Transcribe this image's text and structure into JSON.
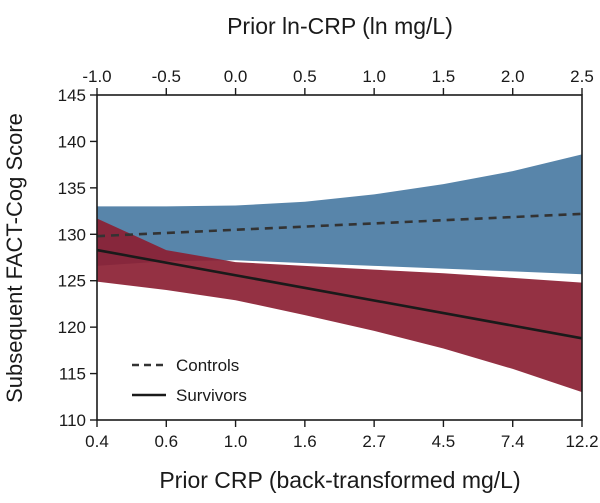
{
  "chart_data": {
    "type": "line",
    "title_top_axis": "Prior ln-CRP (ln mg/L)",
    "xlabel": "Prior CRP (back-transformed mg/L)",
    "ylabel": "Subsequent FACT-Cog Score",
    "xlim": [
      -1.0,
      2.5
    ],
    "ylim": [
      110,
      145
    ],
    "top_ticks": [
      {
        "value": -1.0,
        "label": "-1.0"
      },
      {
        "value": -0.5,
        "label": "-0.5"
      },
      {
        "value": 0.0,
        "label": "0.0"
      },
      {
        "value": 0.5,
        "label": "0.5"
      },
      {
        "value": 1.0,
        "label": "1.0"
      },
      {
        "value": 1.5,
        "label": "1.5"
      },
      {
        "value": 2.0,
        "label": "2.0"
      },
      {
        "value": 2.5,
        "label": "2.5"
      }
    ],
    "bottom_ticks": [
      {
        "value": -1.0,
        "label": "0.4"
      },
      {
        "value": -0.5,
        "label": "0.6"
      },
      {
        "value": 0.0,
        "label": "1.0"
      },
      {
        "value": 0.5,
        "label": "1.6"
      },
      {
        "value": 1.0,
        "label": "2.7"
      },
      {
        "value": 1.5,
        "label": "4.5"
      },
      {
        "value": 2.0,
        "label": "7.4"
      },
      {
        "value": 2.5,
        "label": "12.2"
      }
    ],
    "y_ticks": [
      {
        "value": 110,
        "label": "110"
      },
      {
        "value": 115,
        "label": "115"
      },
      {
        "value": 120,
        "label": "120"
      },
      {
        "value": 125,
        "label": "125"
      },
      {
        "value": 130,
        "label": "130"
      },
      {
        "value": 135,
        "label": "135"
      },
      {
        "value": 140,
        "label": "140"
      },
      {
        "value": 145,
        "label": "145"
      }
    ],
    "series": [
      {
        "name": "Controls",
        "line_style": "dashed",
        "color": "#333333",
        "band_color": "#4a7ba3",
        "x": [
          -1.0,
          2.5
        ],
        "y": [
          129.8,
          132.2
        ],
        "band": {
          "x": [
            -1.0,
            -0.5,
            0.0,
            0.5,
            1.0,
            1.5,
            2.0,
            2.5
          ],
          "upper": [
            133.0,
            133.0,
            133.1,
            133.5,
            134.3,
            135.4,
            136.8,
            138.6
          ],
          "lower": [
            126.6,
            127.1,
            127.2,
            126.9,
            126.6,
            126.3,
            126.0,
            125.7
          ]
        }
      },
      {
        "name": "Survivors",
        "line_style": "solid",
        "color": "#1a1a1a",
        "band_color": "#8b1f33",
        "x": [
          -1.0,
          2.5
        ],
        "y": [
          128.3,
          118.8
        ],
        "band": {
          "x": [
            -1.0,
            -0.5,
            0.0,
            0.5,
            1.0,
            1.5,
            2.0,
            2.5
          ],
          "upper": [
            131.7,
            128.3,
            127.0,
            126.6,
            126.2,
            125.8,
            125.3,
            124.8
          ],
          "lower": [
            124.9,
            124.0,
            122.9,
            121.3,
            119.6,
            117.7,
            115.5,
            113.0
          ]
        }
      }
    ],
    "legend": {
      "placement": "bottom-left",
      "entries": [
        "Controls",
        "Survivors"
      ]
    }
  }
}
